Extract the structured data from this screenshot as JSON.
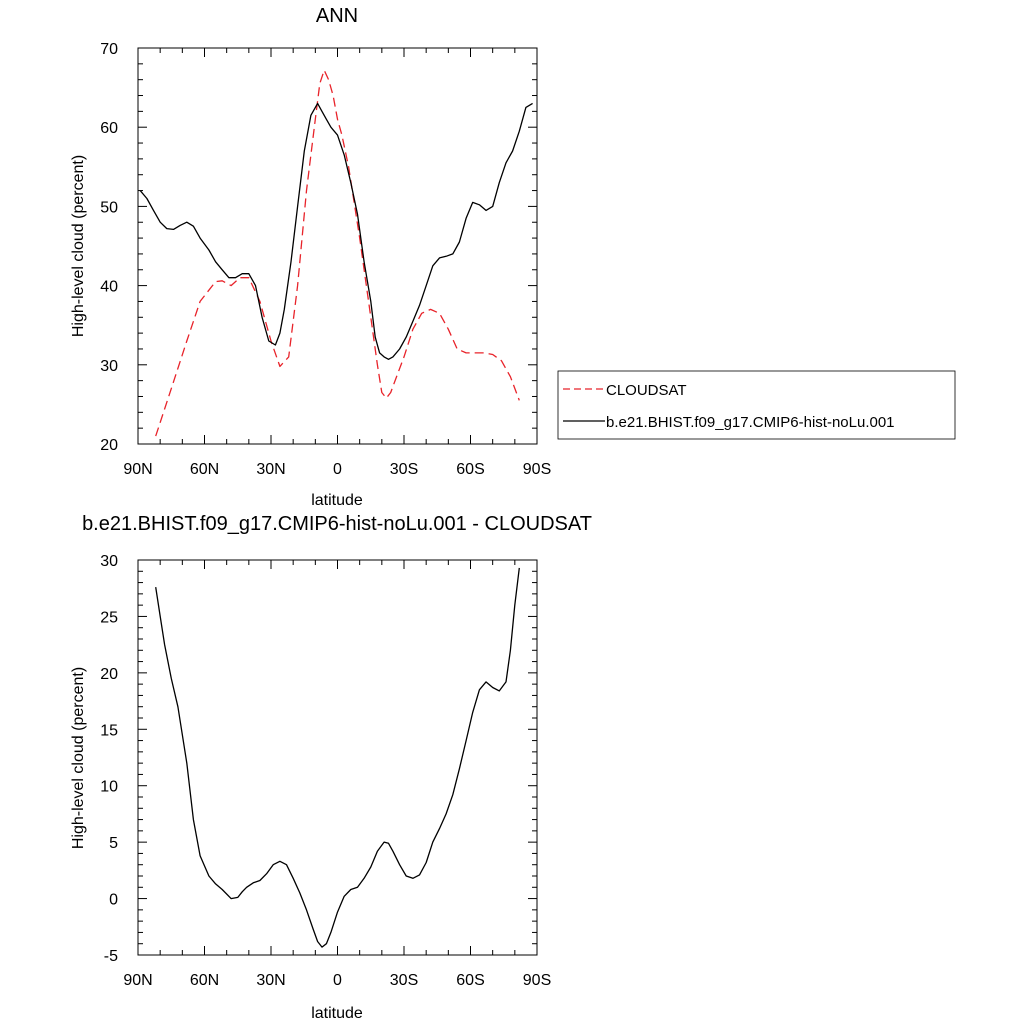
{
  "chart_data": [
    {
      "type": "line",
      "title": "ANN",
      "xlabel": "latitude",
      "ylabel": "High-level cloud (percent)",
      "xlim": [
        90,
        -90
      ],
      "ylim": [
        20,
        70
      ],
      "x_tick_values": [
        90,
        60,
        30,
        0,
        -30,
        -60,
        -90
      ],
      "x_tick_labels": [
        "90N",
        "60N",
        "30N",
        "0",
        "30S",
        "60S",
        "90S"
      ],
      "y_tick_values": [
        20,
        30,
        40,
        50,
        60,
        70
      ],
      "y_tick_labels": [
        "20",
        "30",
        "40",
        "50",
        "60",
        "70"
      ],
      "legend_position": "right",
      "series": [
        {
          "name": "CLOUDSAT",
          "color": "#e8232a",
          "style": "dashed",
          "x": [
            82,
            75,
            68,
            62,
            55,
            52,
            48,
            44,
            40,
            35,
            30,
            26,
            22,
            18,
            14,
            10,
            8,
            6,
            4,
            2,
            0,
            -2,
            -5,
            -10,
            -15,
            -18,
            -20,
            -22,
            -24,
            -26,
            -30,
            -34,
            -38,
            -42,
            -46,
            -50,
            -54,
            -58,
            -62,
            -66,
            -70,
            -74,
            -78,
            -82
          ],
          "y": [
            21,
            27,
            33,
            38,
            40.5,
            40.6,
            40,
            41,
            41,
            38,
            33,
            29.8,
            31,
            40,
            52,
            61,
            65.5,
            67.2,
            66,
            64,
            61,
            59,
            55,
            46,
            36,
            30,
            26.5,
            25.8,
            26.5,
            28,
            31,
            34.5,
            36.5,
            37,
            36.5,
            34.5,
            32,
            31.5,
            31.5,
            31.5,
            31.3,
            30.5,
            28.5,
            25.5
          ]
        },
        {
          "name": "b.e21.BHIST.f09_g17.CMIP6-hist-noLu.001",
          "color": "#000000",
          "style": "solid",
          "x": [
            89,
            86,
            83,
            80,
            77,
            74,
            71,
            68,
            65,
            62,
            58,
            55,
            52,
            49,
            46,
            43,
            40,
            37,
            34,
            31,
            28,
            26,
            24,
            21,
            18,
            15,
            12,
            9,
            7,
            5,
            3,
            0,
            -3,
            -6,
            -9,
            -12,
            -15,
            -17,
            -19,
            -21,
            -23,
            -25,
            -28,
            -31,
            -34,
            -37,
            -40,
            -43,
            -46,
            -49,
            -52,
            -55,
            -58,
            -61,
            -64,
            -67,
            -70,
            -73,
            -76,
            -79,
            -82,
            -85,
            -88
          ],
          "y": [
            52,
            51,
            49.5,
            48,
            47.2,
            47.1,
            47.6,
            48,
            47.5,
            46,
            44.5,
            43,
            42,
            41,
            41,
            41.5,
            41.5,
            40,
            36,
            33,
            32.5,
            34,
            37,
            43,
            50,
            57,
            61.5,
            63,
            62,
            61,
            60,
            59,
            56.5,
            53,
            49,
            43,
            38,
            33.5,
            31.5,
            31,
            30.7,
            31,
            32,
            33.5,
            35.5,
            37.5,
            40,
            42.5,
            43.5,
            43.7,
            44,
            45.5,
            48.5,
            50.5,
            50.2,
            49.5,
            50,
            53,
            55.5,
            57,
            59.5,
            62.5,
            63
          ]
        }
      ]
    },
    {
      "type": "line",
      "title": "b.e21.BHIST.f09_g17.CMIP6-hist-noLu.001 - CLOUDSAT",
      "xlabel": "latitude",
      "ylabel": "High-level cloud (percent)",
      "xlim": [
        90,
        -90
      ],
      "ylim": [
        -5,
        30
      ],
      "x_tick_values": [
        90,
        60,
        30,
        0,
        -30,
        -60,
        -90
      ],
      "x_tick_labels": [
        "90N",
        "60N",
        "30N",
        "0",
        "30S",
        "60S",
        "90S"
      ],
      "y_tick_values": [
        -5,
        0,
        5,
        10,
        15,
        20,
        25,
        30
      ],
      "y_tick_labels": [
        "-5",
        "0",
        "5",
        "10",
        "15",
        "20",
        "25",
        "30"
      ],
      "series": [
        {
          "color": "#000000",
          "style": "solid",
          "x": [
            82,
            80,
            78,
            75,
            72,
            68,
            65,
            62,
            58,
            55,
            52,
            48,
            45,
            43,
            41,
            38,
            35,
            32,
            29,
            26,
            23,
            20,
            17,
            14,
            11,
            9,
            7,
            5,
            3,
            0,
            -3,
            -6,
            -9,
            -12,
            -15,
            -18,
            -21,
            -23,
            -25,
            -28,
            -31,
            -34,
            -37,
            -40,
            -43,
            -46,
            -49,
            -52,
            -55,
            -58,
            -61,
            -64,
            -67,
            -70,
            -73,
            -76,
            -78,
            -80,
            -82
          ],
          "y": [
            27.6,
            25,
            22.5,
            19.5,
            17,
            12,
            7,
            3.8,
            2,
            1.3,
            0.8,
            0,
            0.1,
            0.6,
            1,
            1.4,
            1.6,
            2.2,
            3,
            3.3,
            3,
            1.8,
            0.5,
            -1,
            -2.7,
            -3.8,
            -4.3,
            -4,
            -3,
            -1.2,
            0.2,
            0.8,
            1,
            1.8,
            2.8,
            4.2,
            5,
            4.9,
            4.2,
            3,
            2,
            1.8,
            2.1,
            3.2,
            5,
            6.2,
            7.5,
            9.2,
            11.5,
            14,
            16.5,
            18.5,
            19.2,
            18.7,
            18.4,
            19.2,
            22,
            26,
            29.3
          ]
        }
      ]
    }
  ]
}
